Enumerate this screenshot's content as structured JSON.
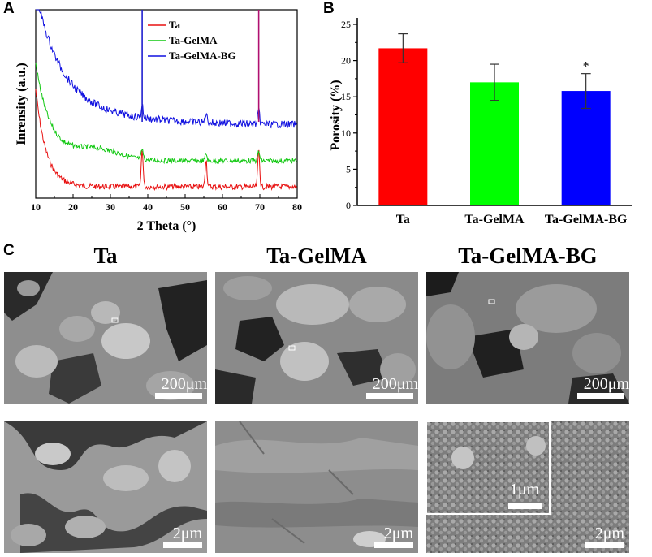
{
  "panels": {
    "a": "A",
    "b": "B",
    "c": "C"
  },
  "chart_data": [
    {
      "type": "line",
      "panel": "A",
      "xlabel": "2 Theta (°)",
      "ylabel": "Inrensity (a.u.)",
      "xlim": [
        10,
        80
      ],
      "xticks": [
        "10",
        "20",
        "30",
        "40",
        "50",
        "60",
        "70",
        "80"
      ],
      "legend_position": "top-center",
      "peaks": [
        38.5,
        55.6,
        69.7
      ],
      "series": [
        {
          "name": "Ta",
          "color": "#e81010"
        },
        {
          "name": "Ta-GelMA",
          "color": "#10c810"
        },
        {
          "name": "Ta-GelMA-BG",
          "color": "#1010e0"
        }
      ]
    },
    {
      "type": "bar",
      "panel": "B",
      "ylabel": "Porosity (%)",
      "ylim": [
        0,
        25
      ],
      "yticks": [
        "0",
        "5",
        "10",
        "15",
        "20",
        "25"
      ],
      "categories": [
        "Ta",
        "Ta-GelMA",
        "Ta-GelMA-BG"
      ],
      "values": [
        21.7,
        17.0,
        15.8
      ],
      "errors": [
        2.0,
        2.5,
        2.4
      ],
      "colors": [
        "#ff0000",
        "#00ff00",
        "#0000ff"
      ],
      "annotations": [
        "",
        "",
        "*"
      ]
    }
  ],
  "sem": {
    "titles": [
      "Ta",
      "Ta-GelMA",
      "Ta-GelMA-BG"
    ],
    "scale_top": "200μm",
    "scale_bottom": "2μm",
    "scale_inset": "1μm"
  }
}
